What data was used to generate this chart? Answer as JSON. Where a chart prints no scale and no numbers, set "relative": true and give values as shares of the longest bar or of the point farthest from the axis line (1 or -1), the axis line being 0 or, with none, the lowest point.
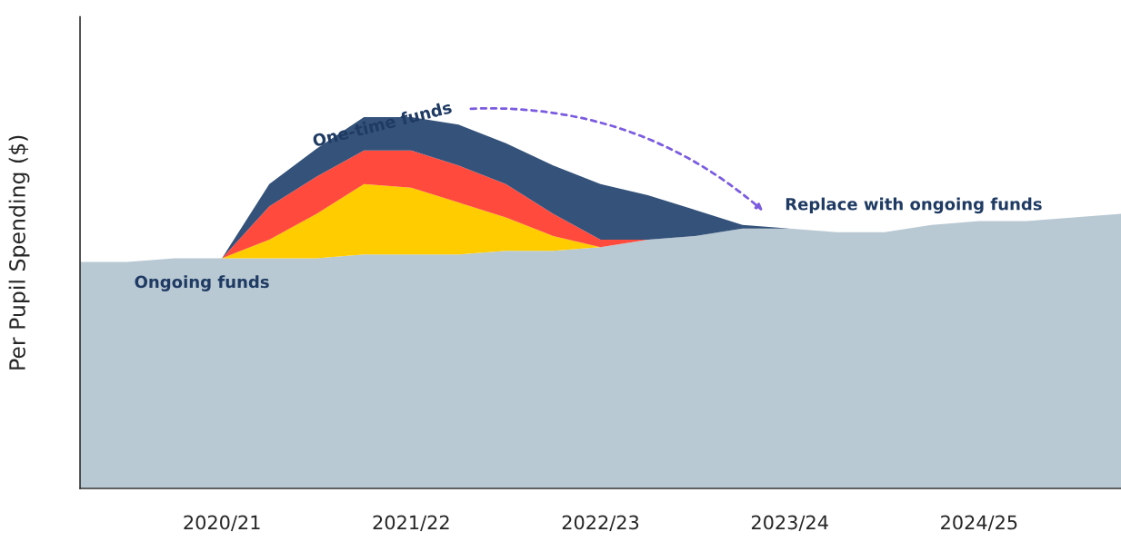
{
  "chart_data": {
    "type": "area",
    "stacked": true,
    "relative": true,
    "ylabel": "Per Pupil Spending ($)",
    "categories": [
      null,
      null,
      null,
      "2020/21",
      null,
      null,
      null,
      "2021/22",
      null,
      null,
      null,
      "2022/23",
      null,
      null,
      null,
      "2023/24",
      null,
      null,
      null,
      "2024/25",
      null,
      null,
      null
    ],
    "tick_labels": "x",
    "grid": false,
    "series": [
      {
        "name": "Ongoing funds",
        "color": "#b8c9d3",
        "values": [
          0.61,
          0.61,
          0.62,
          0.62,
          0.62,
          0.62,
          0.63,
          0.63,
          0.63,
          0.64,
          0.64,
          0.65,
          0.67,
          0.68,
          0.7,
          0.7,
          0.69,
          0.69,
          0.71,
          0.72,
          0.72,
          0.73,
          0.74
        ]
      },
      {
        "color": "#ffcc00",
        "values": [
          0,
          0,
          0,
          0,
          0.05,
          0.12,
          0.19,
          0.18,
          0.14,
          0.09,
          0.04,
          0,
          0,
          0,
          0,
          0,
          0,
          0,
          0,
          0,
          0,
          0,
          0
        ]
      },
      {
        "color": "#ff4a3d",
        "values": [
          0,
          0,
          0,
          0,
          0.09,
          0.1,
          0.09,
          0.1,
          0.1,
          0.09,
          0.06,
          0.02,
          0,
          0,
          0,
          0,
          0,
          0,
          0,
          0,
          0,
          0,
          0
        ]
      },
      {
        "name": "One-time funds",
        "color": "#34527a",
        "values": [
          0,
          0,
          0,
          0,
          0.06,
          0.075,
          0.09,
          0.09,
          0.11,
          0.11,
          0.13,
          0.15,
          0.12,
          0.07,
          0.01,
          0,
          0,
          0,
          0,
          0,
          0,
          0,
          0
        ]
      }
    ],
    "annotations": [
      "Replace with ongoing funds"
    ]
  }
}
